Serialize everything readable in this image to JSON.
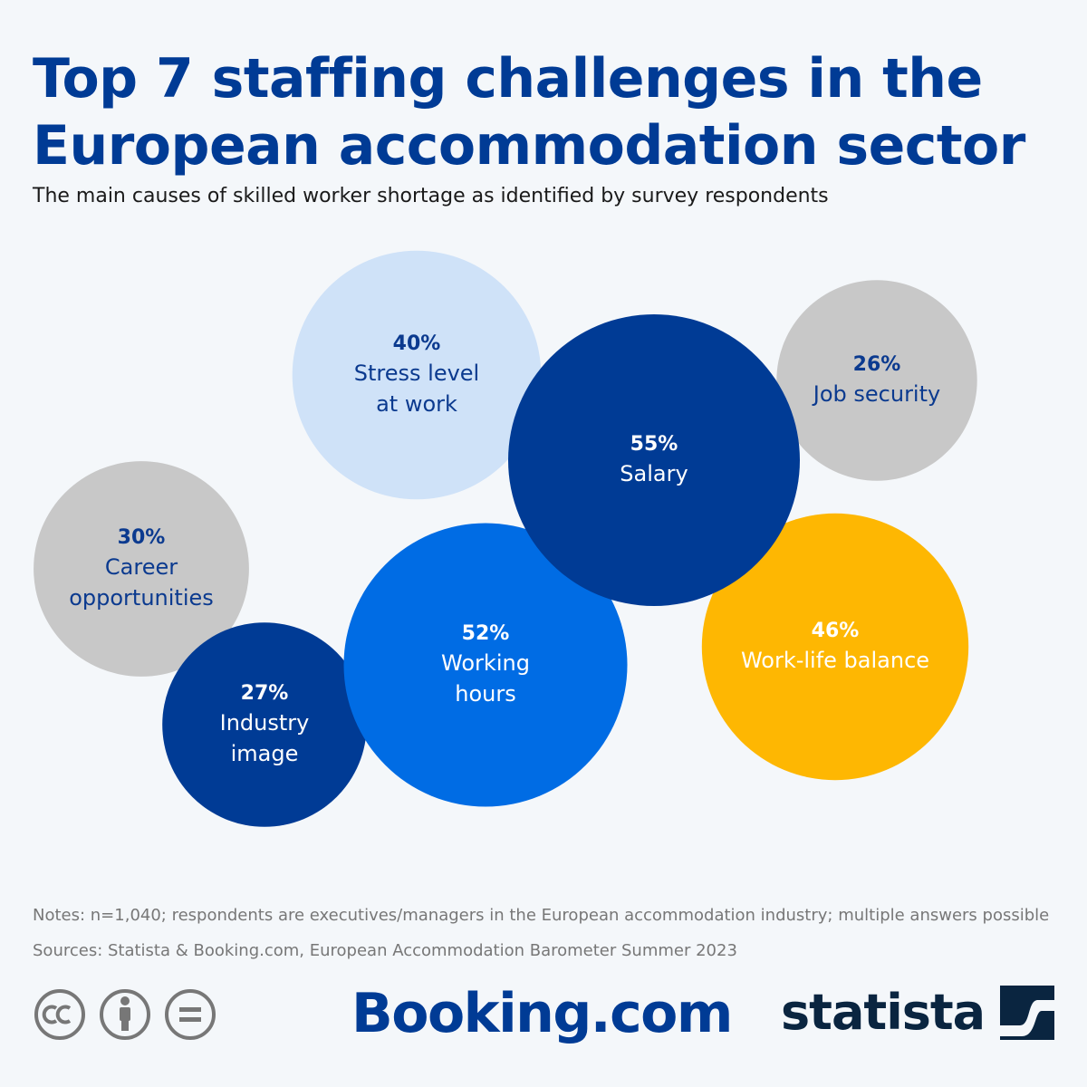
{
  "title": "Top 7 staffing challenges in the European accommodation sector",
  "subtitle": "The main causes of skilled worker shortage as identified by survey respondents",
  "notes": "Notes: n=1,040; respondents are executives/managers in the European accommodation industry; multiple answers possible",
  "sources": "Sources: Statista & Booking.com, European Accommodation Barometer Summer 2023",
  "brand": {
    "booking": "Booking.com",
    "statista": "statista"
  },
  "license_icons": [
    "cc-icon",
    "attribution-icon",
    "no-derivatives-icon"
  ],
  "chart_data": {
    "type": "bubble",
    "title": "Top 7 staffing challenges in the European accommodation sector",
    "unit": "%",
    "items": [
      {
        "label": [
          "Stress level",
          "at work"
        ],
        "value": 40,
        "display": "40%",
        "color": "#cfe2f8",
        "text_color": "#0b3a8f"
      },
      {
        "label": [
          "Job security"
        ],
        "value": 26,
        "display": "26%",
        "color": "#c8c8c8",
        "text_color": "#0b3a8f"
      },
      {
        "label": [
          "Career",
          "opportunities"
        ],
        "value": 30,
        "display": "30%",
        "color": "#c8c8c8",
        "text_color": "#0b3a8f"
      },
      {
        "label": [
          "Work-life balance"
        ],
        "value": 46,
        "display": "46%",
        "color": "#feb702",
        "text_color": "#ffffff"
      },
      {
        "label": [
          "Industry",
          "image"
        ],
        "value": 27,
        "display": "27%",
        "color": "#003b95",
        "text_color": "#ffffff"
      },
      {
        "label": [
          "Working",
          "hours"
        ],
        "value": 52,
        "display": "52%",
        "color": "#006ce4",
        "text_color": "#ffffff"
      },
      {
        "label": [
          "Salary"
        ],
        "value": 55,
        "display": "55%",
        "color": "#003b95",
        "text_color": "#ffffff"
      }
    ]
  }
}
